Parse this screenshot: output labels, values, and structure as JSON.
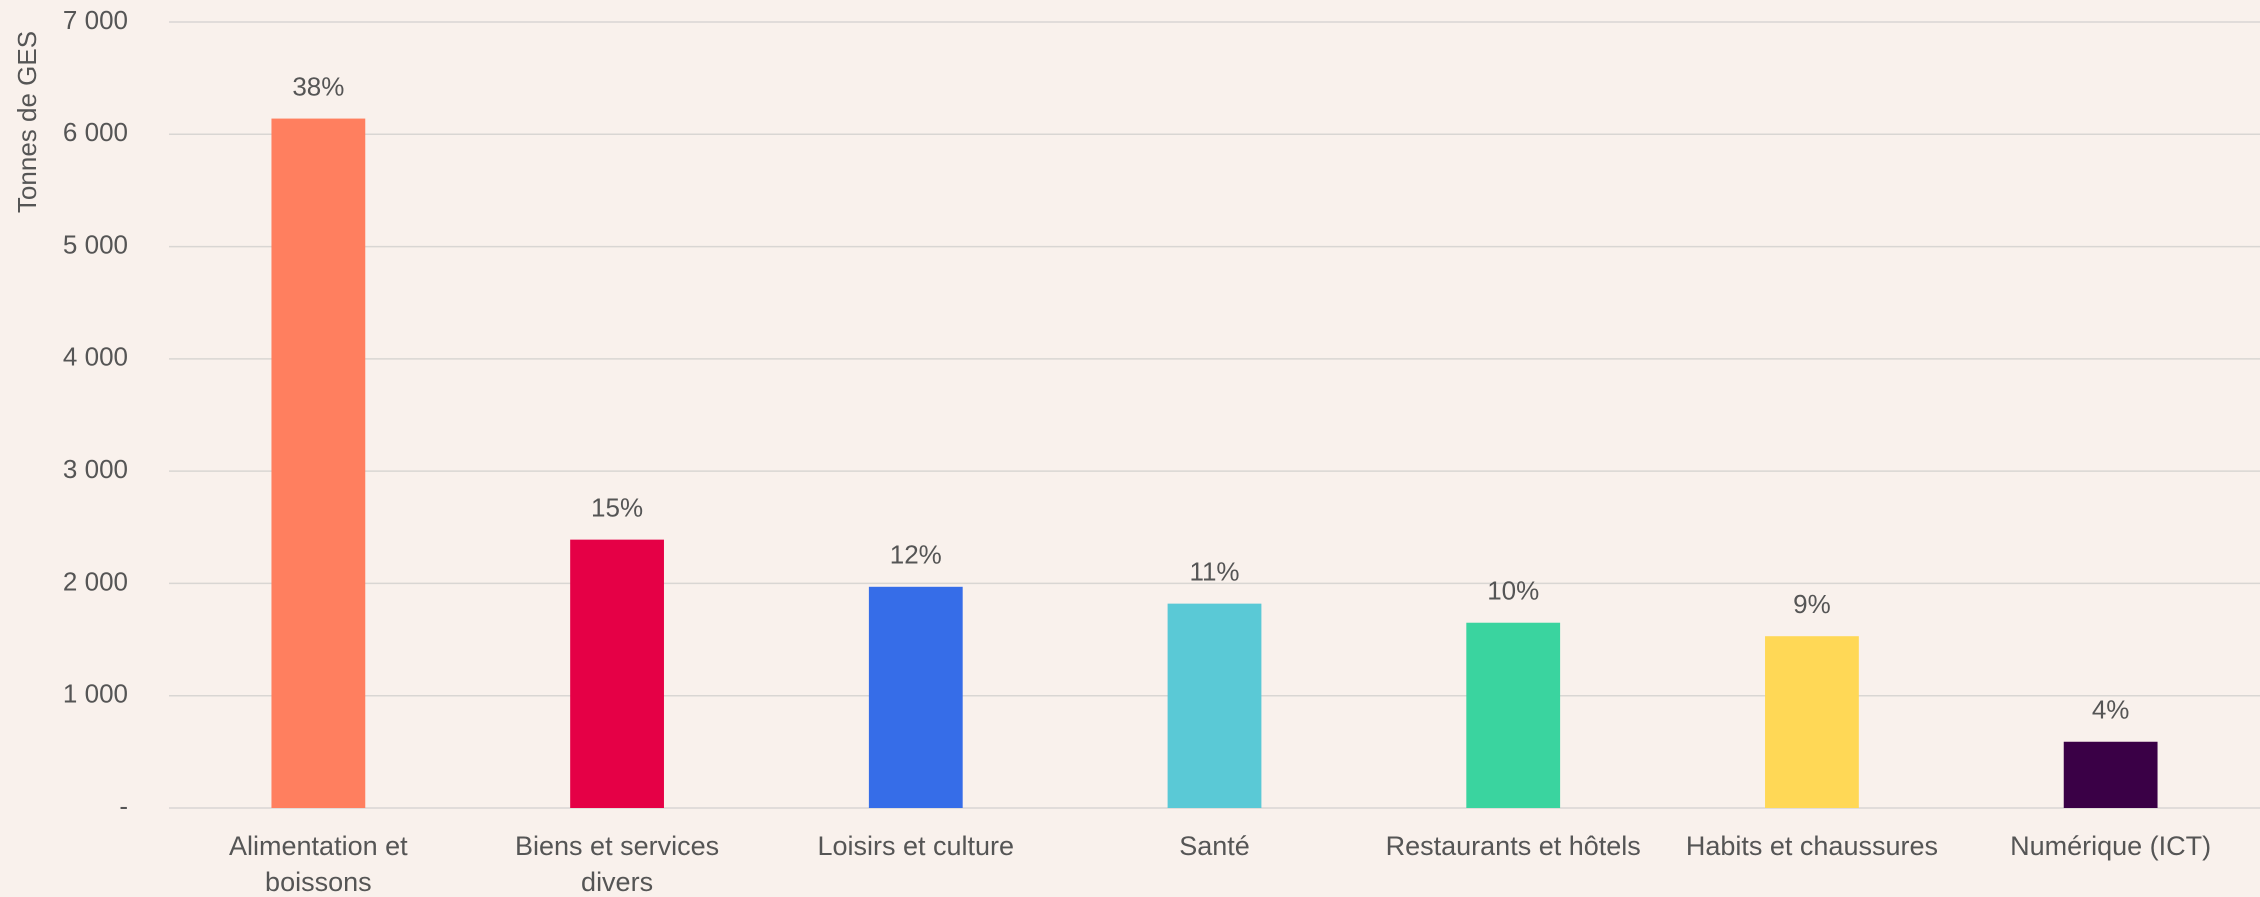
{
  "chart_data": {
    "type": "bar",
    "y_label": "Tonnes de GES",
    "categories": [
      "Alimentation et boissons",
      "Biens et services divers",
      "Loisirs et culture",
      "Santé",
      "Restaurants et hôtels",
      "Habits et chaussures",
      "Numérique (ICT)"
    ],
    "values": [
      6140,
      2390,
      1970,
      1820,
      1650,
      1530,
      590
    ],
    "share_labels": [
      "38%",
      "15%",
      "12%",
      "11%",
      "10%",
      "9%",
      "4%"
    ],
    "colors": [
      "#ff7f5f",
      "#e50046",
      "#366de8",
      "#5ac9d6",
      "#3ad49f",
      "#ffd856",
      "#3a0046"
    ],
    "ylim": [
      0,
      7000
    ],
    "yticks": [
      {
        "value": 0,
        "label": "-"
      },
      {
        "value": 1000,
        "label": "1 000"
      },
      {
        "value": 2000,
        "label": "2 000"
      },
      {
        "value": 3000,
        "label": "3 000"
      },
      {
        "value": 4000,
        "label": "4 000"
      },
      {
        "value": 5000,
        "label": "5 000"
      },
      {
        "value": 6000,
        "label": "6 000"
      },
      {
        "value": 7000,
        "label": "7 000"
      }
    ],
    "grid": true
  }
}
